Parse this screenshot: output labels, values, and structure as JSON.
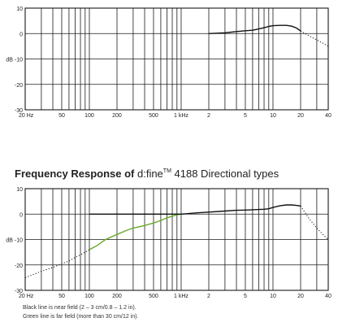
{
  "title": {
    "bold": "Frequency Response of ",
    "product": "d:fine",
    "trademark": "TM",
    "rest": " 4188 Directional types"
  },
  "notes": [
    "Black line is near field (2 – 3 cm/0.8 – 1.2 in).",
    "Green line is far field (more than 30 cm/12 in)."
  ],
  "colors": {
    "near_field": "#111111",
    "far_field": "#6aa82a",
    "grid": "#1a1a1a"
  },
  "chart_data": [
    {
      "type": "line",
      "xscale": "log",
      "xlim": [
        20,
        40000
      ],
      "ylim": [
        -30,
        10
      ],
      "ylabel": "dB",
      "grid": true,
      "x_ticks": [
        {
          "value": 20,
          "label": "20 Hz"
        },
        {
          "value": 50,
          "label": "50"
        },
        {
          "value": 100,
          "label": "100"
        },
        {
          "value": 200,
          "label": "200"
        },
        {
          "value": 500,
          "label": "500"
        },
        {
          "value": 1000,
          "label": "1 kHz"
        },
        {
          "value": 2000,
          "label": "2"
        },
        {
          "value": 5000,
          "label": "5"
        },
        {
          "value": 10000,
          "label": "10"
        },
        {
          "value": 20000,
          "label": "20"
        },
        {
          "value": 40000,
          "label": "40"
        }
      ],
      "y_ticks": [
        {
          "value": 10,
          "label": "10"
        },
        {
          "value": 0,
          "label": "0"
        },
        {
          "value": -10,
          "label": "dB -10"
        },
        {
          "value": -20,
          "label": "-20"
        },
        {
          "value": -30,
          "label": "-30"
        }
      ],
      "series": [
        {
          "color": "#111111",
          "style": "solid",
          "x": [
            2000,
            3000,
            4000,
            5000,
            6000,
            7000,
            8000,
            9000,
            10000,
            12000,
            14000,
            16000,
            18000,
            20000
          ],
          "y": [
            0,
            0.3,
            0.8,
            1.1,
            1.3,
            1.8,
            2.3,
            2.8,
            3.1,
            3.2,
            3.2,
            2.9,
            2.2,
            1.0
          ]
        },
        {
          "color": "#111111",
          "style": "dotted",
          "x": [
            20000,
            25000,
            30000,
            35000,
            40000
          ],
          "y": [
            1.0,
            -1.0,
            -2.5,
            -3.8,
            -5.0
          ]
        }
      ]
    },
    {
      "type": "line",
      "xscale": "log",
      "xlim": [
        20,
        40000
      ],
      "ylim": [
        -30,
        10
      ],
      "ylabel": "dB",
      "grid": true,
      "x_ticks": [
        {
          "value": 20,
          "label": "20 Hz"
        },
        {
          "value": 50,
          "label": "50"
        },
        {
          "value": 100,
          "label": "100"
        },
        {
          "value": 200,
          "label": "200"
        },
        {
          "value": 500,
          "label": "500"
        },
        {
          "value": 1000,
          "label": "1 kHz"
        },
        {
          "value": 2000,
          "label": "2"
        },
        {
          "value": 5000,
          "label": "5"
        },
        {
          "value": 10000,
          "label": "10"
        },
        {
          "value": 20000,
          "label": "20"
        },
        {
          "value": 40000,
          "label": "40"
        }
      ],
      "y_ticks": [
        {
          "value": 10,
          "label": "10"
        },
        {
          "value": 0,
          "label": "0"
        },
        {
          "value": -10,
          "label": "dB -10"
        },
        {
          "value": -20,
          "label": "-20"
        },
        {
          "value": -30,
          "label": "-30"
        }
      ],
      "series": [
        {
          "color": "#111111",
          "style": "dotted",
          "x": [
            20,
            30,
            40,
            50,
            60,
            70,
            80,
            90,
            100
          ],
          "y": [
            -25,
            -22.5,
            -21,
            -19.5,
            -18.5,
            -17,
            -16,
            -15,
            -14
          ]
        },
        {
          "color": "#6aa82a",
          "style": "solid",
          "x": [
            100,
            120,
            150,
            200,
            250,
            300,
            400,
            500,
            600,
            700,
            800,
            900,
            1000
          ],
          "y": [
            -14,
            -12.5,
            -10,
            -8,
            -6.5,
            -5.5,
            -4.5,
            -3.5,
            -2.5,
            -1.5,
            -0.8,
            -0.3,
            0
          ]
        },
        {
          "color": "#111111",
          "style": "solid",
          "x": [
            100,
            200,
            500,
            1000,
            1500,
            2000,
            3000,
            4000,
            5000,
            6000,
            7000,
            8000,
            9000,
            10000,
            12000,
            14000,
            16000,
            18000,
            20000
          ],
          "y": [
            0,
            0,
            0,
            0,
            0.5,
            0.8,
            1.2,
            1.5,
            1.6,
            1.7,
            1.8,
            1.9,
            2.1,
            2.6,
            3.3,
            3.6,
            3.6,
            3.4,
            3.2
          ]
        },
        {
          "color": "#111111",
          "style": "dotted",
          "x": [
            20000,
            25000,
            30000,
            35000,
            40000
          ],
          "y": [
            3.2,
            -2,
            -5.5,
            -8,
            -10
          ]
        }
      ]
    }
  ]
}
